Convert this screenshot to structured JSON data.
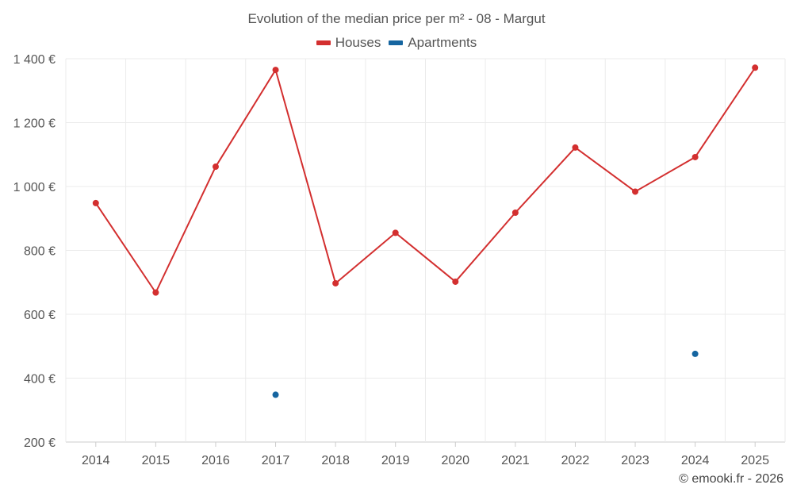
{
  "chart_data": {
    "type": "line",
    "title": "Evolution of the median price per m² - 08 - Margut",
    "categories": [
      "2014",
      "2015",
      "2016",
      "2017",
      "2018",
      "2019",
      "2020",
      "2021",
      "2022",
      "2023",
      "2024",
      "2025"
    ],
    "y_ticks": [
      "200 €",
      "400 €",
      "600 €",
      "800 €",
      "1 000 €",
      "1 200 €",
      "1 400 €"
    ],
    "y_tick_values": [
      200,
      400,
      600,
      800,
      1000,
      1200,
      1400
    ],
    "ylim": [
      200,
      1400
    ],
    "xlabel": "",
    "ylabel": "",
    "grid": true,
    "legend_position": "top-center",
    "series": [
      {
        "name": "Houses",
        "color": "#d32f2f",
        "values": [
          948,
          668,
          1062,
          1365,
          697,
          855,
          702,
          918,
          1122,
          984,
          1092,
          1372
        ]
      },
      {
        "name": "Apartments",
        "color": "#1565a0",
        "values": [
          null,
          null,
          null,
          348,
          null,
          null,
          null,
          null,
          null,
          null,
          476,
          null
        ]
      }
    ]
  },
  "credit": "© emooki.fr - 2026"
}
